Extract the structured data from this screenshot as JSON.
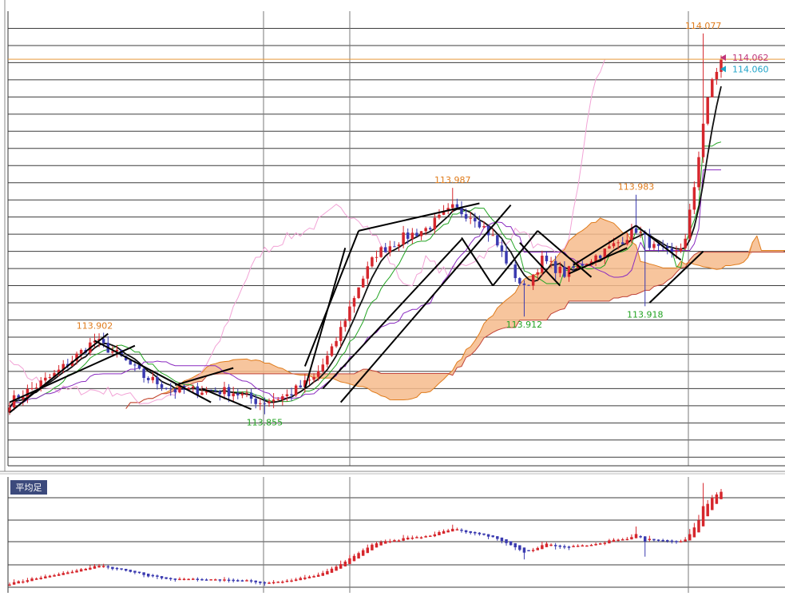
{
  "chart_data": {
    "type": "candlestick",
    "instrument": "",
    "main": {
      "ylim": [
        113.825,
        114.09
      ],
      "current_price_ask": 114.062,
      "current_price_bid": 114.06,
      "annotations": [
        {
          "label": "113.902",
          "value": 113.902,
          "kind": "high",
          "bar": 19,
          "color": "#e07c1c"
        },
        {
          "label": "113.855",
          "value": 113.855,
          "kind": "low",
          "bar": 57,
          "color": "#23a423"
        },
        {
          "label": "113.987",
          "value": 113.987,
          "kind": "high",
          "bar": 99,
          "color": "#e07c1c"
        },
        {
          "label": "113.912",
          "value": 113.912,
          "kind": "low",
          "bar": 115,
          "color": "#23a423"
        },
        {
          "label": "113.983",
          "value": 113.983,
          "kind": "high",
          "bar": 140,
          "color": "#e07c1c"
        },
        {
          "label": "113.918",
          "value": 113.918,
          "kind": "low",
          "bar": 142,
          "color": "#23a423"
        },
        {
          "label": "114.077",
          "value": 114.077,
          "kind": "high",
          "bar": 155,
          "color": "#e07c1c"
        }
      ],
      "price_tags": [
        {
          "label": "114.062",
          "value": 114.062,
          "color": "#c0377a"
        },
        {
          "label": "114.060",
          "value": 114.06,
          "color": "#1fa3c8"
        }
      ]
    },
    "sub": {
      "label": "平均足",
      "type": "heikin-ashi"
    },
    "colors": {
      "up": "#d6262c",
      "down": "#3a3ab0",
      "cloud_fill": "#f6bb8c",
      "cloud_span_a": "#e07c1c",
      "cloud_span_b": "#c0443a",
      "lagging": "#f2a3d6",
      "conversion": "#23a423",
      "base": "#8a2bc0",
      "sma": "#111111",
      "price_line": "#e89a3a",
      "grid": "#333333"
    },
    "trendlines": [
      [
        0,
        113.856,
        22,
        113.902
      ],
      [
        0,
        113.862,
        28,
        113.895
      ],
      [
        19,
        113.898,
        45,
        113.862
      ],
      [
        37,
        113.872,
        50,
        113.882
      ],
      [
        43,
        113.87,
        54,
        113.858
      ],
      [
        66,
        113.883,
        78,
        113.962
      ],
      [
        66,
        113.87,
        75,
        113.952
      ],
      [
        74,
        113.862,
        112,
        113.977
      ],
      [
        78,
        113.962,
        105,
        113.978
      ],
      [
        70,
        113.87,
        101,
        113.957
      ],
      [
        101,
        113.958,
        108,
        113.93
      ],
      [
        108,
        113.93,
        118,
        113.962
      ],
      [
        114,
        113.955,
        123,
        113.93
      ],
      [
        118,
        113.962,
        130,
        113.935
      ],
      [
        125,
        113.937,
        138,
        113.952
      ],
      [
        126,
        113.942,
        140,
        113.965
      ],
      [
        140,
        113.965,
        150,
        113.945
      ],
      [
        143,
        113.92,
        155,
        113.95
      ]
    ]
  }
}
